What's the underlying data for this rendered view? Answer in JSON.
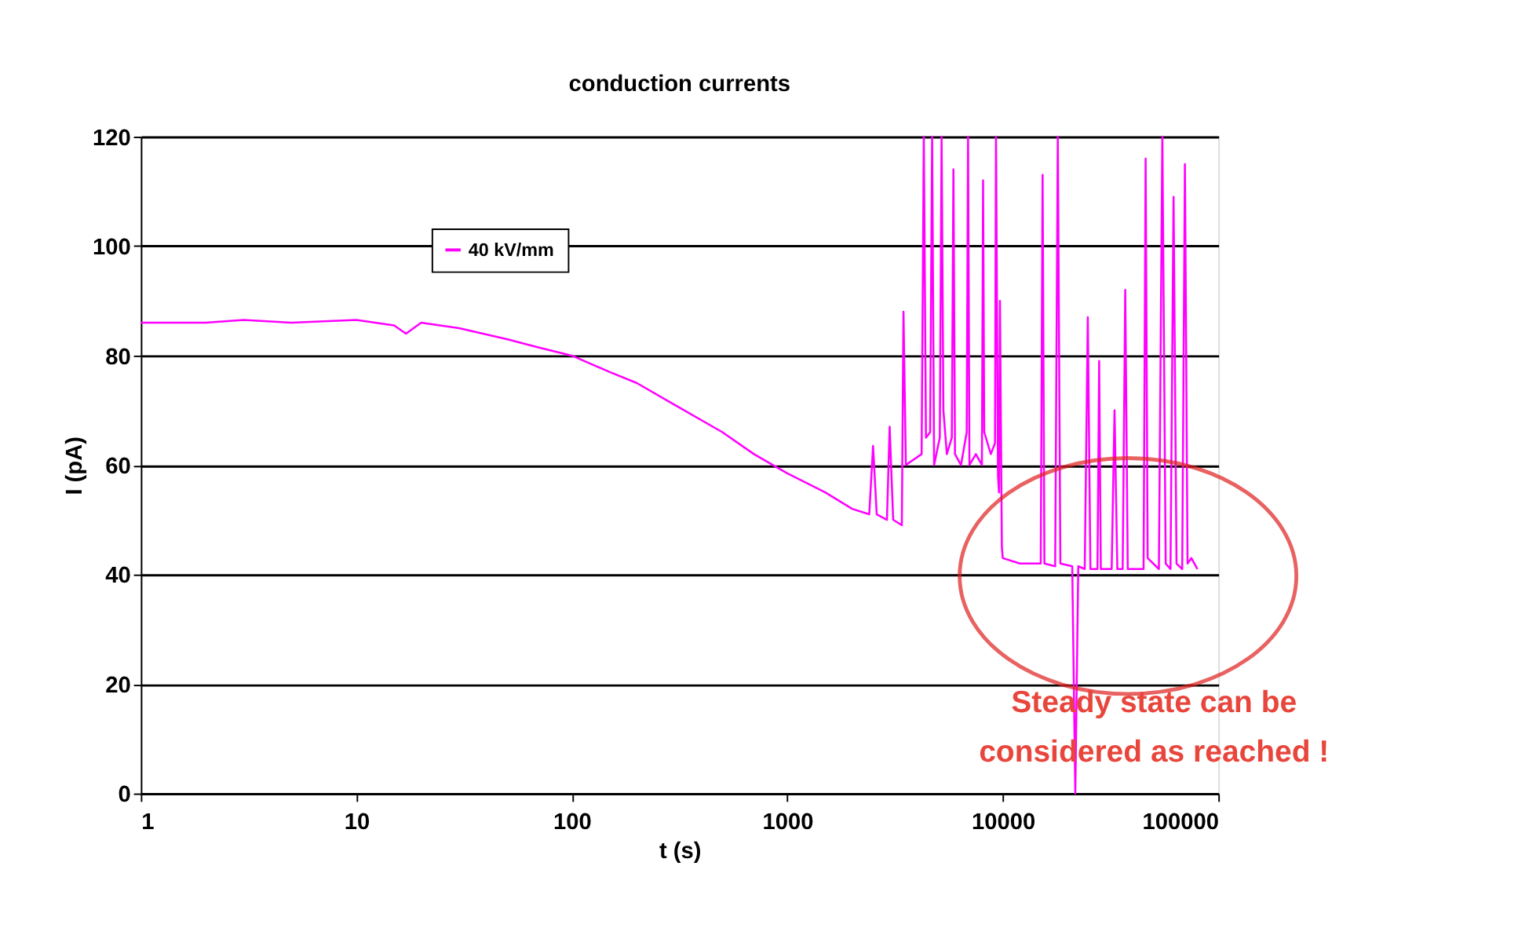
{
  "chart_data": {
    "type": "line",
    "title": "conduction currents",
    "xlabel": "t (s)",
    "ylabel": "I (pA)",
    "xlim": [
      1,
      100000
    ],
    "xticks": [
      1,
      10,
      100,
      1000,
      10000,
      100000
    ],
    "ylim": [
      0,
      120
    ],
    "yticks": [
      0,
      20,
      40,
      60,
      80,
      100,
      120
    ],
    "log": "x",
    "grid": "y",
    "legend": "top left",
    "marker": "none",
    "line_style": "solid",
    "annotations": [
      "Steady state can be\nconsidered as reached !"
    ],
    "series": [
      {
        "name": "40 kV/mm",
        "color": "#ff00ff",
        "x": [
          1,
          2,
          3,
          5,
          10,
          15,
          17,
          20,
          30,
          50,
          70,
          100,
          150,
          200,
          300,
          500,
          700,
          1000,
          1500,
          2000,
          2400,
          2500,
          2600,
          2900,
          2985,
          3100,
          3400,
          3460,
          3550,
          4200,
          4300,
          4400,
          4600,
          4700,
          4800,
          5100,
          5200,
          5300,
          5500,
          5800,
          5900,
          6000,
          6400,
          6800,
          6900,
          7000,
          7500,
          8000,
          8100,
          8200,
          8800,
          9200,
          9300,
          9500,
          9600,
          9700,
          9900,
          10000,
          12000,
          15000,
          15300,
          15600,
          17500,
          18000,
          18500,
          21000,
          21700,
          22400,
          24000,
          24800,
          25500,
          27500,
          28000,
          28500,
          32000,
          33000,
          34000,
          36000,
          37000,
          38000,
          45000,
          46000,
          47000,
          53000,
          55000,
          57000,
          60000,
          62000,
          64000,
          68000,
          70000,
          72000,
          75000,
          80000
        ],
        "values": [
          86,
          86,
          86.5,
          86,
          86.5,
          85.5,
          84,
          86,
          85,
          83,
          81.5,
          80,
          77,
          75,
          71,
          66,
          62,
          58.5,
          55,
          52,
          51,
          63.5,
          51,
          50,
          67,
          50,
          49,
          88,
          60,
          62,
          120,
          65,
          66,
          120,
          60,
          65,
          120,
          70,
          62,
          65,
          114,
          62,
          60,
          66,
          120,
          60,
          62,
          60,
          112,
          66,
          62,
          64,
          120,
          58,
          55,
          90,
          45,
          43,
          42,
          42,
          113,
          42,
          41.5,
          120,
          42,
          41.5,
          0,
          41.5,
          41,
          87,
          41,
          41,
          79,
          41,
          41,
          70,
          41,
          41,
          92,
          41,
          41,
          116,
          43,
          41,
          120,
          42,
          41,
          109,
          42,
          41,
          115,
          42,
          43,
          41
        ]
      }
    ]
  }
}
